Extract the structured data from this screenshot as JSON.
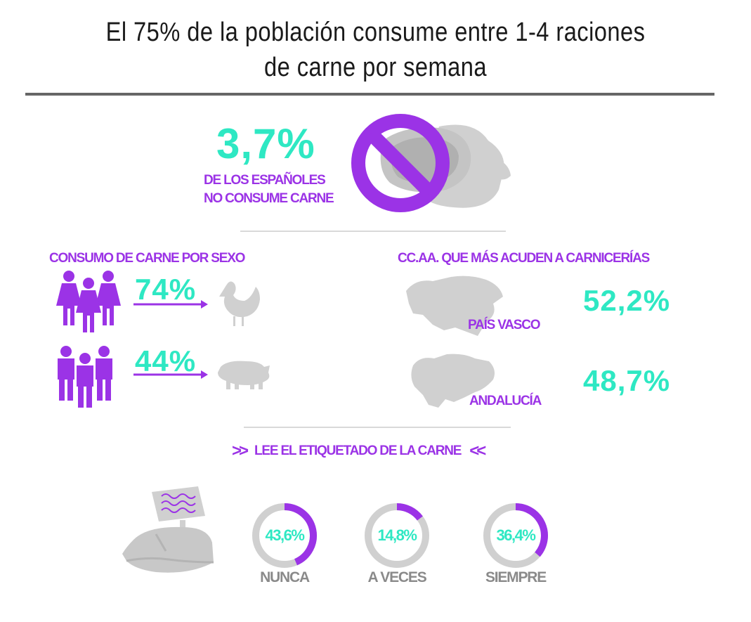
{
  "title_line1": "El 75% de la población consume entre 1-4 raciones",
  "title_line2": "de carne por semana",
  "no_meat": {
    "value": "3,7%",
    "label_line1": "DE LOS ESPAÑOLES",
    "label_line2": "NO CONSUME CARNE"
  },
  "sex": {
    "heading": "CONSUMO DE CARNE POR SEXO",
    "women_value": "74%",
    "men_value": "44%"
  },
  "regions": {
    "heading": "CC.AA. QUE MÁS ACUDEN A CARNICERÍAS",
    "items": [
      {
        "name": "PAÍS VASCO",
        "value": "52,2%"
      },
      {
        "name": "ANDALUCÍA",
        "value": "48,7%"
      }
    ]
  },
  "labeling": {
    "heading_left": ">>",
    "heading": "LEE EL ETIQUETADO DE LA CARNE",
    "heading_right": "<<"
  },
  "chart_data": {
    "type": "pie",
    "title": "LEE EL ETIQUETADO DE LA CARNE",
    "categories": [
      "NUNCA",
      "A VECES",
      "SIEMPRE"
    ],
    "values": [
      43.6,
      14.8,
      36.4
    ],
    "value_labels": [
      "43,6%",
      "14,8%",
      "36,4%"
    ]
  },
  "colors": {
    "teal": "#2ee8c3",
    "purple": "#9b33e6",
    "grey": "#d0d0d0",
    "dark": "#1a1a1a"
  }
}
